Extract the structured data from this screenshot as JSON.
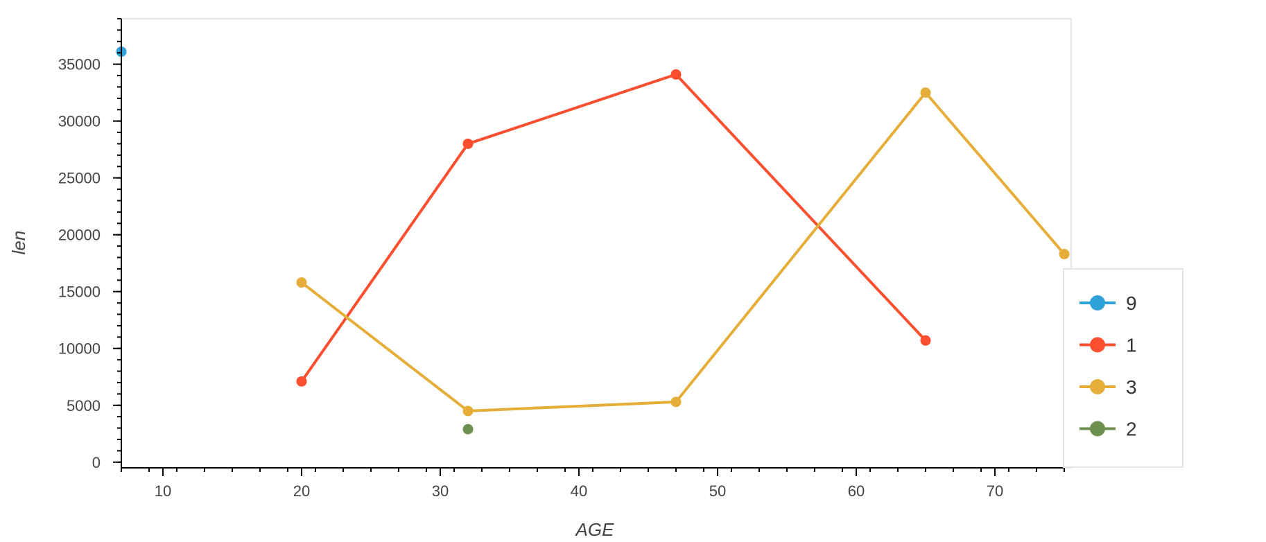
{
  "chart_data": {
    "type": "line",
    "xlabel": "AGE",
    "ylabel": "len",
    "xlim": [
      7,
      75
    ],
    "ylim": [
      -500,
      39000
    ],
    "x_ticks": [
      10,
      20,
      30,
      40,
      50,
      60,
      70
    ],
    "y_ticks": [
      0,
      5000,
      10000,
      15000,
      20000,
      25000,
      30000,
      35000
    ],
    "grid": false,
    "legend_position": "right",
    "series": [
      {
        "name": "9",
        "color": "#30a2da",
        "points": [
          [
            7,
            36100
          ]
        ]
      },
      {
        "name": "1",
        "color": "#fc4f30",
        "points": [
          [
            20,
            7100
          ],
          [
            32,
            28000
          ],
          [
            47,
            34100
          ],
          [
            65,
            10700
          ]
        ]
      },
      {
        "name": "3",
        "color": "#e5ae38",
        "points": [
          [
            20,
            15800
          ],
          [
            32,
            4500
          ],
          [
            47,
            5300
          ],
          [
            65,
            32500
          ],
          [
            75,
            18300
          ]
        ]
      },
      {
        "name": "2",
        "color": "#6d904f",
        "points": [
          [
            32,
            2900
          ]
        ]
      }
    ]
  }
}
